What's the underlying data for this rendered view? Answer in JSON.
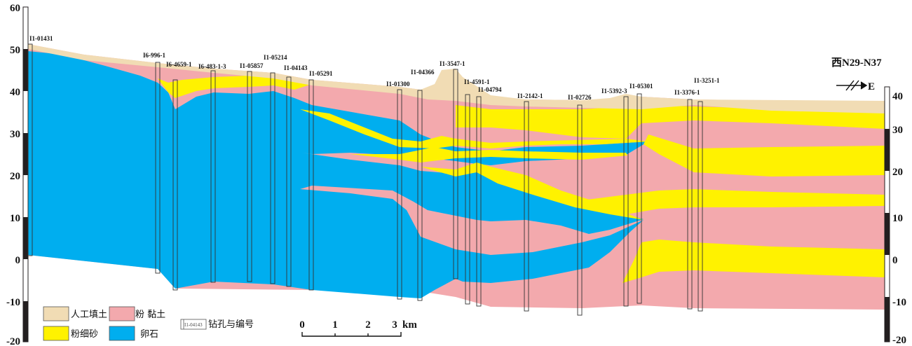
{
  "section_title": "西N29-N37",
  "direction_label": "E",
  "left_axis": {
    "ticks": [
      "60",
      "50",
      "40",
      "30",
      "20",
      "10",
      "0",
      "-10",
      "-20"
    ]
  },
  "right_axis": {
    "ticks": [
      "40",
      "30",
      "20",
      "10",
      "0",
      "-10",
      "-20"
    ]
  },
  "boreholes": [
    "I1-01431",
    "I6-996-1",
    "I6-4659-1",
    "I6-483-1-3",
    "I1-05857",
    "I1-05214",
    "I1-04143",
    "I1-05291",
    "I1-01300",
    "I1-04366",
    "I1-3547-1",
    "I1-4591-1",
    "I1-04794",
    "I1-2142-1",
    "I1-02726",
    "I1-5392-3",
    "I1-05301",
    "I1-3376-1",
    "I1-3251-1"
  ],
  "legend": [
    {
      "label": "人工填土",
      "color": "#f1dcb4"
    },
    {
      "label": "粉 黏土",
      "color": "#f3a9ad"
    },
    {
      "label": "粉细砂",
      "color": "#fff200"
    },
    {
      "label": "卵石",
      "color": "#00aeef"
    }
  ],
  "borehole_legend": {
    "label": "钻孔与编号",
    "sample": "I1-04143"
  },
  "scale_bar": {
    "ticks": [
      "0",
      "1",
      "2",
      "3"
    ],
    "unit": "km"
  }
}
